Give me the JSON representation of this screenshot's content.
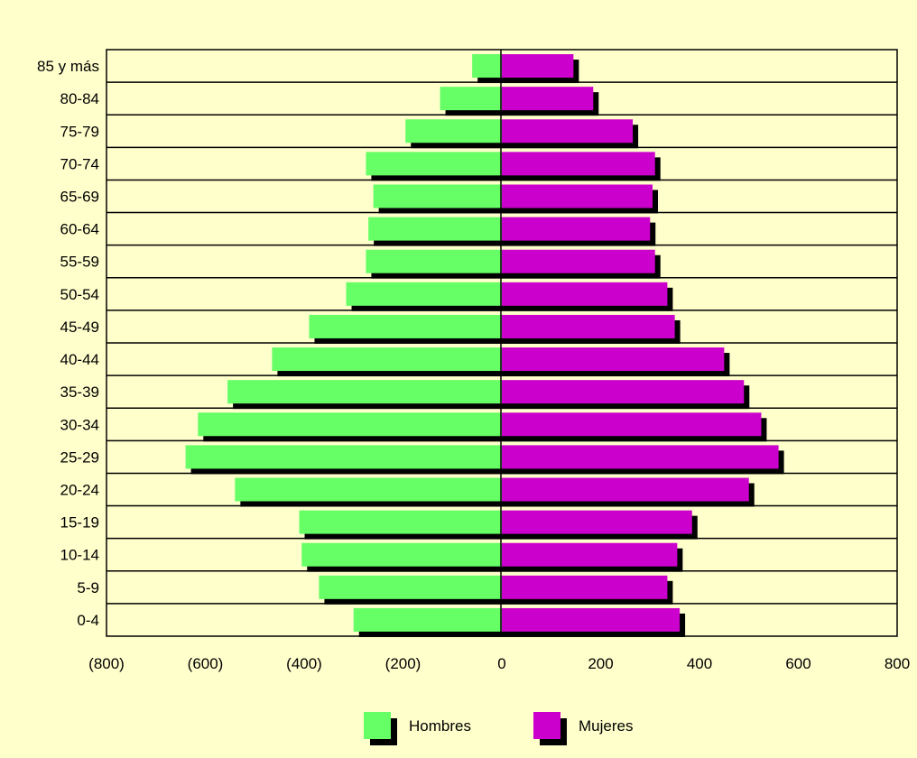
{
  "chart_data": {
    "type": "bar",
    "orientation": "horizontal",
    "layout": "population-pyramid",
    "categories": [
      "0-4",
      "5-9",
      "10-14",
      "15-19",
      "20-24",
      "25-29",
      "30-34",
      "35-39",
      "40-44",
      "45-49",
      "50-54",
      "55-59",
      "60-64",
      "65-69",
      "70-74",
      "75-79",
      "80-84",
      "85 y más"
    ],
    "series": [
      {
        "name": "Hombres",
        "color": "#66ff66",
        "values": [
          -300,
          -370,
          -405,
          -410,
          -540,
          -640,
          -615,
          -555,
          -465,
          -390,
          -315,
          -275,
          -270,
          -260,
          -275,
          -195,
          -125,
          -60
        ]
      },
      {
        "name": "Mujeres",
        "color": "#cc00cc",
        "values": [
          360,
          335,
          355,
          385,
          500,
          560,
          525,
          490,
          450,
          350,
          335,
          310,
          300,
          305,
          310,
          265,
          185,
          145
        ]
      }
    ],
    "xlim": [
      -800,
      800
    ],
    "xticks": [
      -800,
      -600,
      -400,
      -200,
      0,
      200,
      400,
      600,
      800
    ],
    "xtick_labels": [
      "(800)",
      "(600)",
      "(400)",
      "(200)",
      "0",
      "200",
      "400",
      "600",
      "800"
    ],
    "grid": "horizontal",
    "legend": "bottom",
    "title": "",
    "xlabel": "",
    "ylabel": ""
  },
  "colors": {
    "background": "#ffffcc",
    "plot_background": "#ffffcc",
    "shadow": "#000000"
  }
}
